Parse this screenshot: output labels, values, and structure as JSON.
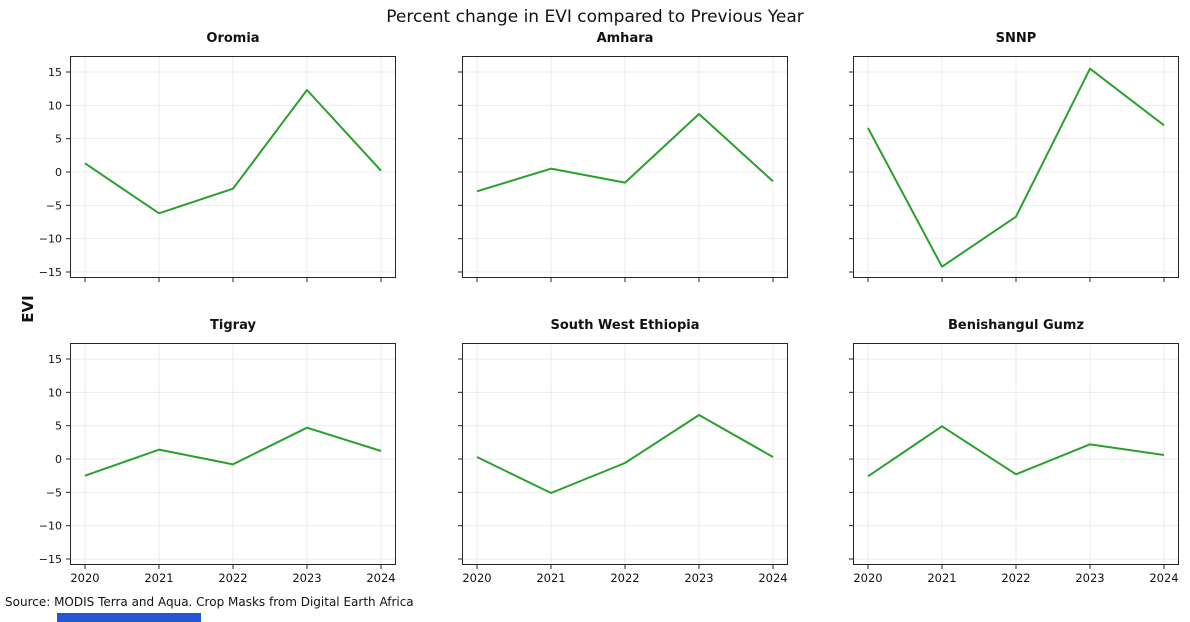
{
  "style": {
    "background": "#ffffff",
    "line_color": "#2ca02c",
    "grid_color": "#ebebeb",
    "spine_color": "#262626",
    "tick_color": "#262626",
    "text_color": "#121212",
    "bottom_bar_color": "#2456d4"
  },
  "chart_data": {
    "type": "line",
    "layout": "2x3 small multiples, shared axes",
    "suptitle": "Percent change in EVI compared to Previous Year",
    "shared_ylabel": "EVI",
    "x": [
      2020,
      2021,
      2022,
      2023,
      2024
    ],
    "xticklabels": [
      "2020",
      "2021",
      "2022",
      "2023",
      "2024"
    ],
    "yticks": [
      15,
      10,
      5,
      0,
      -5,
      -10,
      -15
    ],
    "yticklabels": [
      "15",
      "10",
      "5",
      "0",
      "−5",
      "−10",
      "−15"
    ],
    "ylim": [
      -15.9,
      17.4
    ],
    "grid": true,
    "legend": "none",
    "subplots": [
      {
        "title": "Oromia",
        "values": [
          1.3,
          -6.2,
          -2.5,
          12.3,
          0.2
        ]
      },
      {
        "title": "Amhara",
        "values": [
          -2.9,
          0.5,
          -1.6,
          8.7,
          -1.4
        ]
      },
      {
        "title": "SNNP",
        "values": [
          6.6,
          -14.2,
          -6.7,
          15.5,
          7.0
        ]
      },
      {
        "title": "Tigray",
        "values": [
          -2.5,
          1.4,
          -0.8,
          4.7,
          1.2
        ]
      },
      {
        "title": "South West Ethiopia",
        "values": [
          0.3,
          -5.1,
          -0.6,
          6.6,
          0.3
        ]
      },
      {
        "title": "Benishangul Gumz",
        "values": [
          -2.6,
          4.9,
          -2.3,
          2.2,
          0.6
        ]
      }
    ],
    "source_note": "Source: MODIS Terra and Aqua. Crop Masks from Digital Earth Africa"
  }
}
